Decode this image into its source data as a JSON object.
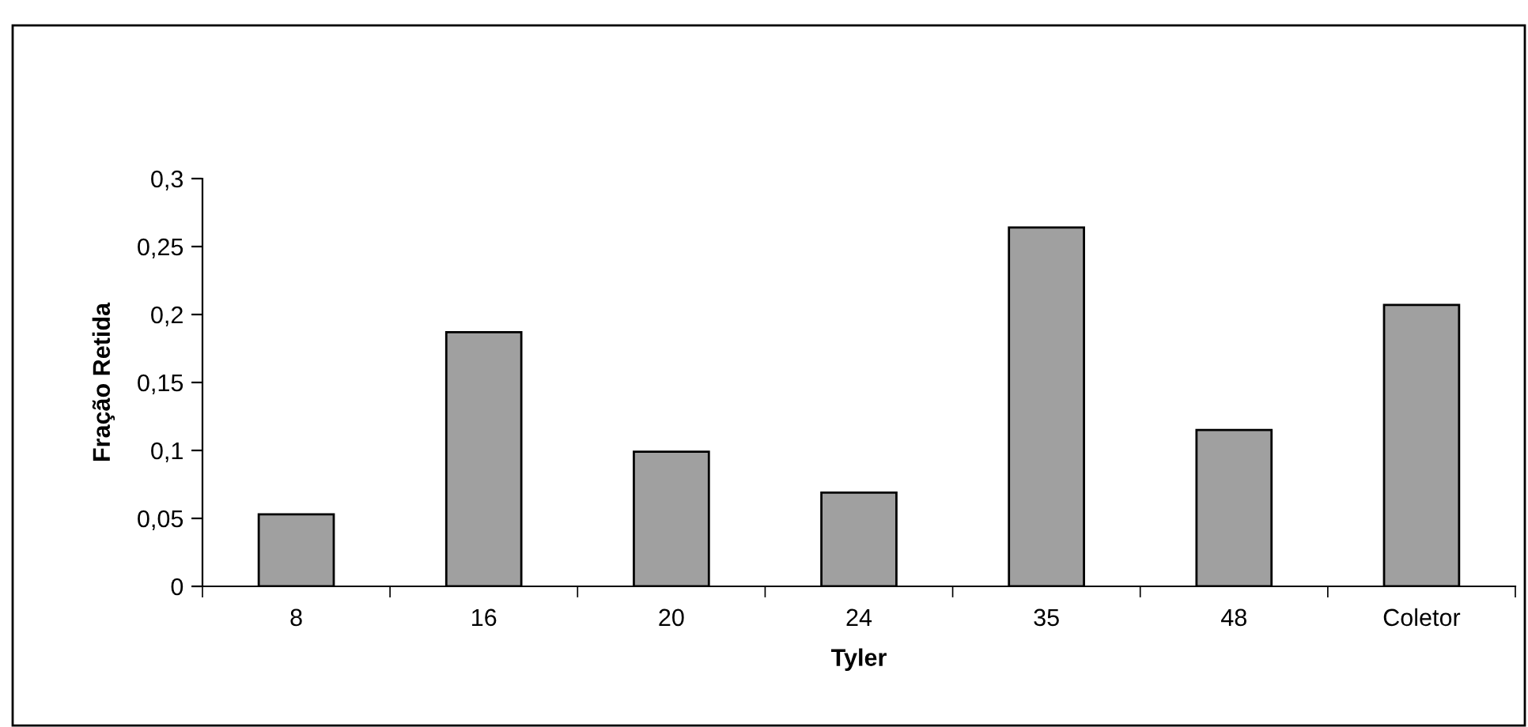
{
  "chart_data": {
    "type": "bar",
    "xlabel": "Tyler",
    "ylabel": "Fração Retida",
    "categories": [
      "8",
      "16",
      "20",
      "24",
      "35",
      "48",
      "Coletor"
    ],
    "values": [
      0.053,
      0.187,
      0.099,
      0.069,
      0.264,
      0.115,
      0.207
    ],
    "color": "#a0a0a0",
    "ylim": [
      0,
      0.3
    ],
    "yticks": [
      0,
      {
        "value": 0.05,
        "label": "0,05"
      },
      {
        "value": 0.1,
        "label": "0,1"
      },
      {
        "value": 0.15,
        "label": "0,15"
      },
      {
        "value": 0.2,
        "label": "0,2"
      },
      {
        "value": 0.25,
        "label": "0,25"
      },
      {
        "value": 0.3,
        "label": "0,3"
      }
    ],
    "grid": false,
    "legend": false
  }
}
